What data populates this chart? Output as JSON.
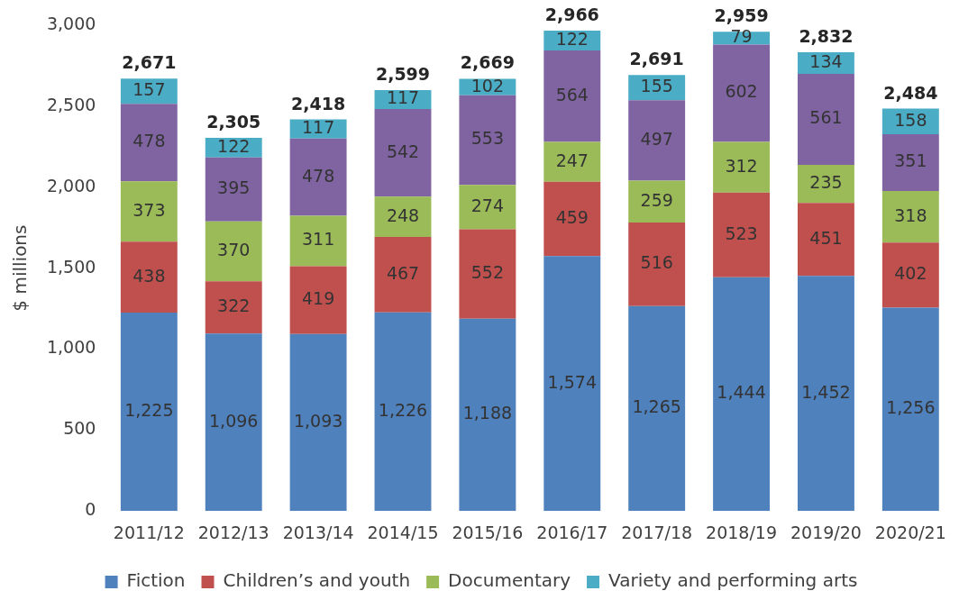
{
  "chart_data": {
    "type": "bar",
    "stacked": true,
    "ylabel": "$ millions",
    "categories": [
      "2011/12",
      "2012/13",
      "2013/14",
      "2014/15",
      "2015/16",
      "2016/17",
      "2017/18",
      "2018/19",
      "2019/20",
      "2020/21"
    ],
    "series": [
      {
        "name": "Fiction",
        "color": "#4f81bd",
        "values": [
          1225,
          1096,
          1093,
          1226,
          1188,
          1574,
          1265,
          1444,
          1452,
          1256
        ],
        "value_labels": [
          "1,225",
          "1,096",
          "1,093",
          "1,226",
          "1,188",
          "1,574",
          "1,265",
          "1,444",
          "1,452",
          "1,256"
        ]
      },
      {
        "name": "Children’s and youth",
        "color": "#c0504d",
        "values": [
          438,
          322,
          419,
          467,
          552,
          459,
          516,
          523,
          451,
          402
        ],
        "value_labels": [
          "438",
          "322",
          "419",
          "467",
          "552",
          "459",
          "516",
          "523",
          "451",
          "402"
        ]
      },
      {
        "name": "Documentary",
        "color": "#9bbb59",
        "values": [
          373,
          370,
          311,
          248,
          274,
          247,
          259,
          312,
          235,
          318
        ],
        "value_labels": [
          "373",
          "370",
          "311",
          "248",
          "274",
          "247",
          "259",
          "312",
          "235",
          "318"
        ]
      },
      {
        "color": "#8064a2",
        "values": [
          478,
          395,
          478,
          542,
          553,
          564,
          497,
          602,
          561,
          351
        ],
        "value_labels": [
          "478",
          "395",
          "478",
          "542",
          "553",
          "564",
          "497",
          "602",
          "561",
          "351"
        ]
      },
      {
        "name": "Variety and performing arts",
        "color": "#4bacc6",
        "values": [
          157,
          122,
          117,
          117,
          102,
          122,
          155,
          79,
          134,
          158
        ],
        "value_labels": [
          "157",
          "122",
          "117",
          "117",
          "102",
          "122",
          "155",
          "79",
          "134",
          "158"
        ]
      }
    ],
    "totals": [
      "2,671",
      "2,305",
      "2,418",
      "2,599",
      "2,669",
      "2,966",
      "2,691",
      "2,959",
      "2,832",
      "2,484"
    ],
    "ylim": [
      0,
      3000
    ],
    "yticks": [
      0,
      500,
      {
        "value": 1000,
        "label": "1,000"
      },
      {
        "value": 1500,
        "label": "1,500"
      },
      {
        "value": 2000,
        "label": "2,000"
      },
      {
        "value": 2500,
        "label": "2,500"
      },
      {
        "value": 3000,
        "label": "3,000"
      }
    ],
    "grid": false,
    "legend": "bottom"
  }
}
